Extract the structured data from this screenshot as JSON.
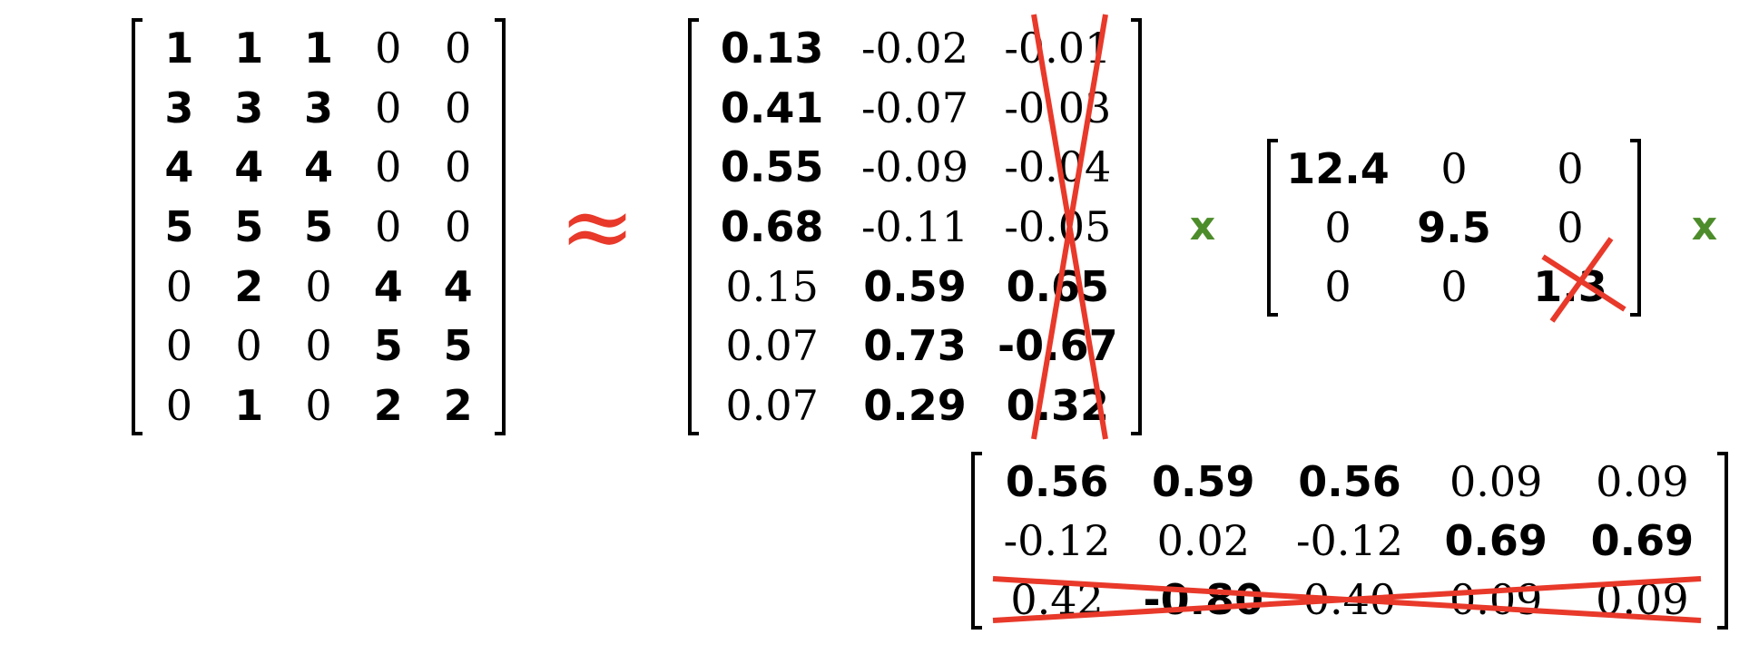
{
  "operators": {
    "approx": "≈",
    "times_1": "x",
    "times_2": "x"
  },
  "colors": {
    "approx": "#e8392a",
    "times": "#4c8c2a",
    "strike": "#e8392a"
  },
  "matrices": {
    "A": {
      "rows": [
        [
          {
            "v": "1",
            "b": true
          },
          {
            "v": "1",
            "b": true
          },
          {
            "v": "1",
            "b": true
          },
          {
            "v": "0",
            "b": false
          },
          {
            "v": "0",
            "b": false
          }
        ],
        [
          {
            "v": "3",
            "b": true
          },
          {
            "v": "3",
            "b": true
          },
          {
            "v": "3",
            "b": true
          },
          {
            "v": "0",
            "b": false
          },
          {
            "v": "0",
            "b": false
          }
        ],
        [
          {
            "v": "4",
            "b": true
          },
          {
            "v": "4",
            "b": true
          },
          {
            "v": "4",
            "b": true
          },
          {
            "v": "0",
            "b": false
          },
          {
            "v": "0",
            "b": false
          }
        ],
        [
          {
            "v": "5",
            "b": true
          },
          {
            "v": "5",
            "b": true
          },
          {
            "v": "5",
            "b": true
          },
          {
            "v": "0",
            "b": false
          },
          {
            "v": "0",
            "b": false
          }
        ],
        [
          {
            "v": "0",
            "b": false
          },
          {
            "v": "2",
            "b": true
          },
          {
            "v": "0",
            "b": false
          },
          {
            "v": "4",
            "b": true
          },
          {
            "v": "4",
            "b": true
          }
        ],
        [
          {
            "v": "0",
            "b": false
          },
          {
            "v": "0",
            "b": false
          },
          {
            "v": "0",
            "b": false
          },
          {
            "v": "5",
            "b": true
          },
          {
            "v": "5",
            "b": true
          }
        ],
        [
          {
            "v": "0",
            "b": false
          },
          {
            "v": "1",
            "b": true
          },
          {
            "v": "0",
            "b": false
          },
          {
            "v": "2",
            "b": true
          },
          {
            "v": "2",
            "b": true
          }
        ]
      ]
    },
    "U": {
      "rows": [
        [
          {
            "v": "0.13",
            "b": true
          },
          {
            "v": "-0.02",
            "b": false
          },
          {
            "v": "-0.01",
            "b": false
          }
        ],
        [
          {
            "v": "0.41",
            "b": true
          },
          {
            "v": "-0.07",
            "b": false
          },
          {
            "v": "-0.03",
            "b": false
          }
        ],
        [
          {
            "v": "0.55",
            "b": true
          },
          {
            "v": "-0.09",
            "b": false
          },
          {
            "v": "-0.04",
            "b": false
          }
        ],
        [
          {
            "v": "0.68",
            "b": true
          },
          {
            "v": "-0.11",
            "b": false
          },
          {
            "v": "-0.05",
            "b": false
          }
        ],
        [
          {
            "v": "0.15",
            "b": false
          },
          {
            "v": "0.59",
            "b": true
          },
          {
            "v": "0.65",
            "b": true
          }
        ],
        [
          {
            "v": "0.07",
            "b": false
          },
          {
            "v": "0.73",
            "b": true
          },
          {
            "v": "-0.67",
            "b": true
          }
        ],
        [
          {
            "v": "0.07",
            "b": false
          },
          {
            "v": "0.29",
            "b": true
          },
          {
            "v": "0.32",
            "b": true
          }
        ]
      ],
      "struck": "column 3"
    },
    "S": {
      "rows": [
        [
          {
            "v": "12.4",
            "b": true
          },
          {
            "v": "0",
            "b": false
          },
          {
            "v": "0",
            "b": false
          }
        ],
        [
          {
            "v": "0",
            "b": false
          },
          {
            "v": "9.5",
            "b": true
          },
          {
            "v": "0",
            "b": false
          }
        ],
        [
          {
            "v": "0",
            "b": false
          },
          {
            "v": "0",
            "b": false
          },
          {
            "v": "1.3",
            "b": true
          }
        ]
      ],
      "struck": "cell 3,3"
    },
    "VT": {
      "rows": [
        [
          {
            "v": "0.56",
            "b": true
          },
          {
            "v": "0.59",
            "b": true
          },
          {
            "v": "0.56",
            "b": true
          },
          {
            "v": "0.09",
            "b": false
          },
          {
            "v": "0.09",
            "b": false
          }
        ],
        [
          {
            "v": "-0.12",
            "b": false
          },
          {
            "v": "0.02",
            "b": false
          },
          {
            "v": "-0.12",
            "b": false
          },
          {
            "v": "0.69",
            "b": true
          },
          {
            "v": "0.69",
            "b": true
          }
        ],
        [
          {
            "v": "0.42",
            "b": false
          },
          {
            "v": "-0.80",
            "b": true
          },
          {
            "v": "0.40",
            "b": false
          },
          {
            "v": "0.09",
            "b": false
          },
          {
            "v": "0.09",
            "b": false
          }
        ]
      ],
      "struck": "row 3"
    }
  }
}
